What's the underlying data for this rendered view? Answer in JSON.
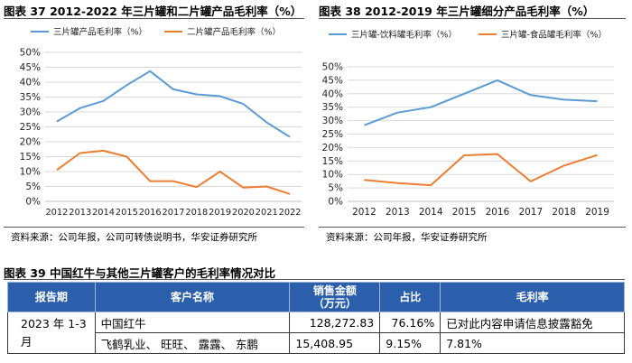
{
  "fig37": {
    "title": "图表 37 2012-2022 年三片罐和二片罐产品毛利率（%）",
    "source": "资料来源：公司年报，公司可转债说明书，华安证券研究所"
  },
  "fig38": {
    "title": "图表 38 2012-2019 年三片罐细分产品毛利率（%）",
    "source": "资料来源：公司年报，华安证券研究所"
  },
  "fig39": {
    "title": "图表 39 中国红牛与其他三片罐客户的毛利率情况对比",
    "headers": [
      "报告期",
      "客户名称",
      "销售金额\n（万元）",
      "占比",
      "毛利率"
    ],
    "period": "2023 年 1-3 月",
    "rows": [
      {
        "customer": "中国红牛",
        "amount": "128,272.83",
        "share": "76.16%",
        "margin": "已对此内容申请信息披露豁免"
      },
      {
        "customer": "飞鹤乳业、 旺旺、 露露、 东鹏",
        "amount": "15,408.95",
        "share": "9.15%",
        "margin": "7.81%"
      }
    ]
  },
  "colors": {
    "blue": "#5b9bd5",
    "orange": "#ed7d31",
    "header_blue": "#2b5fab"
  },
  "chart_data": [
    {
      "type": "line",
      "categories": [
        "2012",
        "2013",
        "2014",
        "2015",
        "2016",
        "2017",
        "2018",
        "2019",
        "2020",
        "2021",
        "2022"
      ],
      "series": [
        {
          "name": "三片罐产品毛利率（%）",
          "values": [
            26.8,
            31.3,
            33.7,
            39.0,
            43.7,
            37.6,
            35.9,
            35.3,
            32.7,
            26.5,
            21.6
          ]
        },
        {
          "name": "二片罐产品毛利率（%）",
          "values": [
            10.5,
            16.2,
            17.0,
            15.0,
            6.8,
            6.8,
            4.8,
            10.0,
            4.6,
            5.0,
            2.5
          ]
        }
      ],
      "yticks": [
        "0%",
        "5%",
        "10%",
        "15%",
        "20%",
        "25%",
        "30%",
        "35%",
        "40%",
        "45%",
        "50%"
      ],
      "ylim": [
        0,
        50
      ],
      "grid": true,
      "legend": "top"
    },
    {
      "type": "line",
      "categories": [
        "2012",
        "2013",
        "2014",
        "2015",
        "2016",
        "2017",
        "2018",
        "2019"
      ],
      "series": [
        {
          "name": "三片罐-饮料罐毛利率（%）",
          "values": [
            28.3,
            33.0,
            35.0,
            40.0,
            45.0,
            39.5,
            37.8,
            37.2
          ]
        },
        {
          "name": "三片罐-食品罐毛利率（%）",
          "values": [
            8.0,
            6.8,
            6.0,
            17.1,
            17.6,
            7.4,
            13.3,
            17.2
          ]
        }
      ],
      "yticks": [
        "0%",
        "5%",
        "10%",
        "15%",
        "20%",
        "25%",
        "30%",
        "35%",
        "40%",
        "45%",
        "50%"
      ],
      "ylim": [
        0,
        50
      ],
      "grid": true,
      "legend": "top"
    }
  ]
}
